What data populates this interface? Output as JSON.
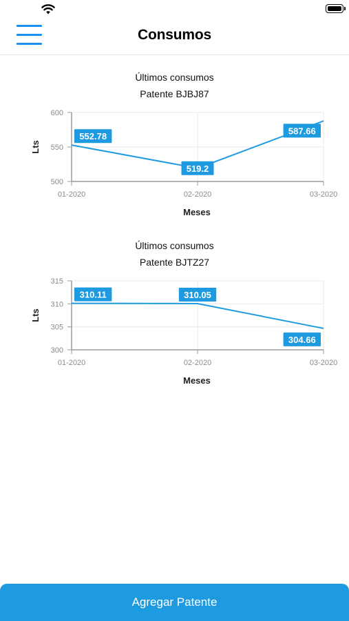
{
  "status_bar": {
    "wifi_icon": "wifi-icon",
    "battery_icon": "battery-icon"
  },
  "header": {
    "menu_icon": "hamburger-menu-icon",
    "title": "Consumos"
  },
  "charts": [
    {
      "title_line1": "Últimos consumos",
      "title_line2": "Patente BJBJ87",
      "chart_data": {
        "type": "line",
        "categories": [
          "01-2020",
          "02-2020",
          "03-2020"
        ],
        "values": [
          552.78,
          519.2,
          587.66
        ],
        "data_labels": [
          "552.78",
          "519.2",
          "587.66"
        ],
        "xlabel": "Meses",
        "ylabel": "Lts",
        "ylim": [
          500,
          600
        ],
        "yticks": [
          "500",
          "550",
          "600"
        ],
        "grid": true,
        "line_color": "#1e9be0"
      }
    },
    {
      "title_line1": "Últimos consumos",
      "title_line2": "Patente BJTZ27",
      "chart_data": {
        "type": "line",
        "categories": [
          "01-2020",
          "02-2020",
          "03-2020"
        ],
        "values": [
          310.11,
          310.05,
          304.66
        ],
        "data_labels": [
          "310.11",
          "310.05",
          "304.66"
        ],
        "xlabel": "Meses",
        "ylabel": "Lts",
        "ylim": [
          300,
          315
        ],
        "yticks": [
          "300",
          "305",
          "310",
          "315"
        ],
        "grid": true,
        "line_color": "#1e9be0"
      }
    }
  ],
  "footer": {
    "add_button_label": "Agregar Patente"
  }
}
